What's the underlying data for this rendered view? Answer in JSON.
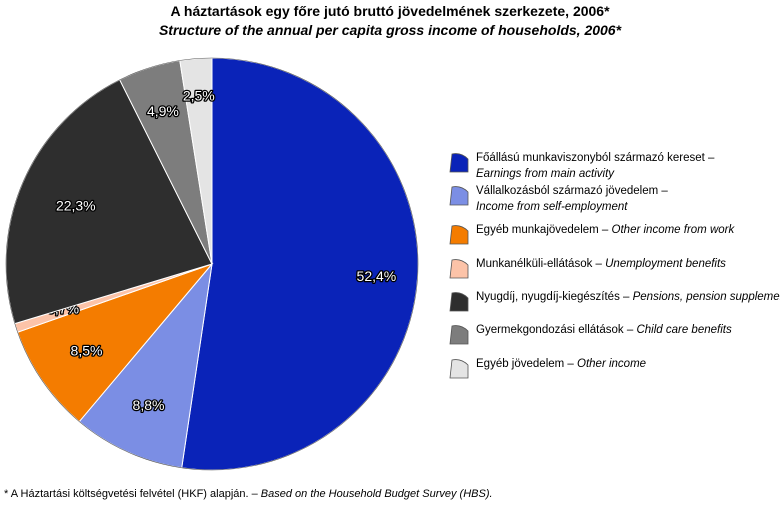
{
  "chart_data": {
    "type": "pie",
    "title": "A háztartások egy főre jutó bruttó jövedelmének szerkezete, 2006*",
    "subtitle": "Structure of the annual per capita gross income of households, 2006*",
    "slices": [
      {
        "value": 52.4,
        "label": "52,4%",
        "color": "#0a23b8",
        "legend_hu": "Főállású munkaviszonyból származó kereset –",
        "legend_en": "Earnings from main activity"
      },
      {
        "value": 8.8,
        "label": "8,8%",
        "color": "#7b8ee4",
        "legend_hu": "Vállalkozásból származó jövedelem –",
        "legend_en": "Income from self-employment"
      },
      {
        "value": 8.5,
        "label": "8,5%",
        "color": "#f47c00",
        "legend_hu": "Egyéb munkajövedelem  – ",
        "legend_en": "Other income from work"
      },
      {
        "value": 0.7,
        "label": "0,7%",
        "color": "#fcc3a8",
        "legend_hu": "Munkanélküli-ellátások – ",
        "legend_en": "Unemployment benefits"
      },
      {
        "value": 22.3,
        "label": "22,3%",
        "color": "#2e2e2e",
        "legend_hu": "Nyugdíj, nyugdíj-kiegészítés – ",
        "legend_en": "Pensions, pension supplements"
      },
      {
        "value": 4.9,
        "label": "4,9%",
        "color": "#7d7d7d",
        "legend_hu": "Gyermekgondozási ellátások – ",
        "legend_en": "Child care benefits"
      },
      {
        "value": 2.5,
        "label": "2,5%",
        "color": "#e4e4e4",
        "legend_hu": "Egyéb  jövedelem – ",
        "legend_en": "Other income"
      }
    ],
    "legend_position": "right"
  },
  "footnote": {
    "hu": "* A Háztartási költségvetési felvétel (HKF) alapján. – ",
    "en": "Based on the Household Budget Survey (HBS)."
  }
}
